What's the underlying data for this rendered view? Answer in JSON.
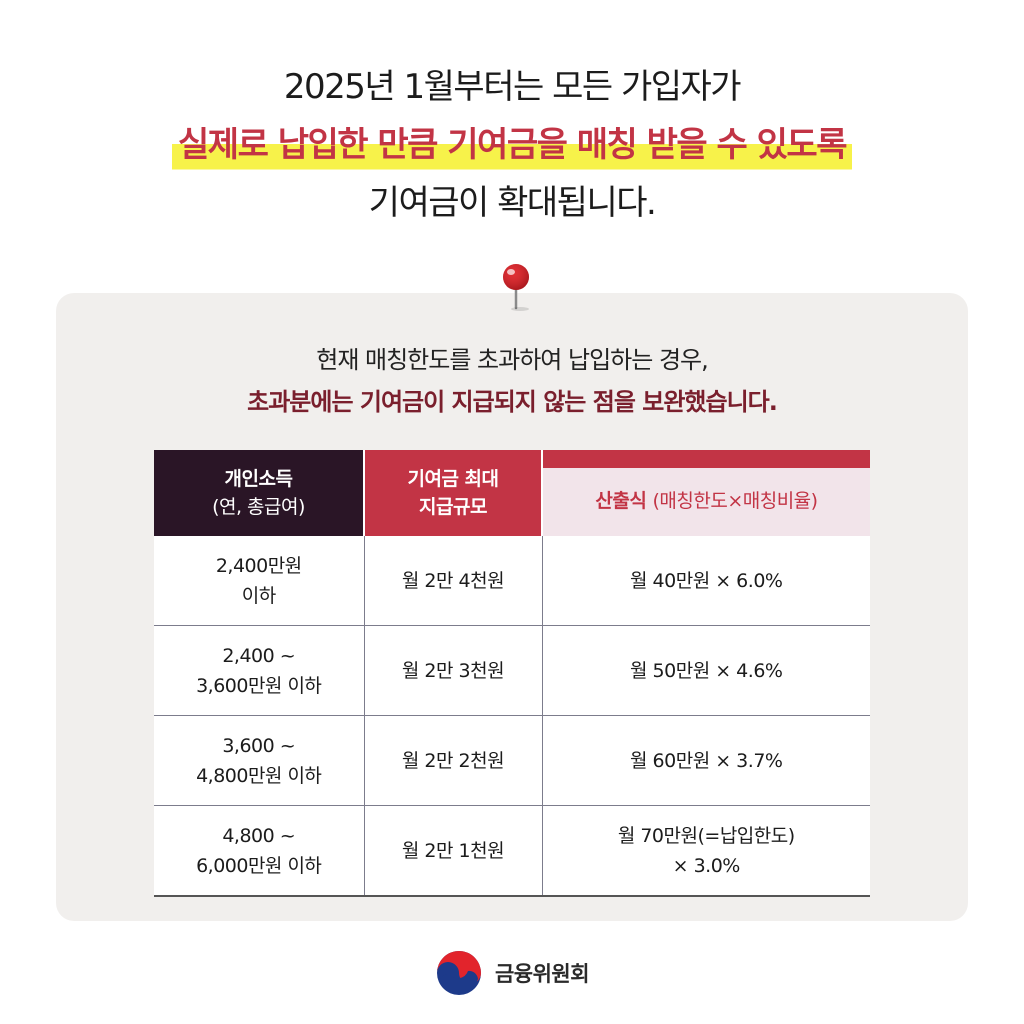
{
  "headline": {
    "line1": "2025년 1월부터는 모든 가입자가",
    "line2_highlight": "실제로 납입한 만큼 기여금을 매칭 받을 수 있도록",
    "line3": "기여금이 확대됩니다."
  },
  "intro": {
    "line1": "현재 매칭한도를 초과하여 납입하는 경우,",
    "line2": "초과분에는 기여금이 지급되지 않는 점을 보완했습니다."
  },
  "table": {
    "headers": {
      "income_title": "개인소득",
      "income_sub": "(연, 총급여)",
      "max_title": "기여금 최대",
      "max_sub": "지급규모",
      "formula_title": "산출식",
      "formula_note": "(매칭한도×매칭비율)"
    },
    "rows": [
      {
        "income_line1": "2,400만원",
        "income_line2": "이하",
        "max": "월 2만 4천원",
        "formula_line1": "월 40만원 × 6.0%",
        "formula_line2": ""
      },
      {
        "income_line1": "2,400 ~",
        "income_line2": "3,600만원 이하",
        "max": "월 2만 3천원",
        "formula_line1": "월 50만원 × 4.6%",
        "formula_line2": ""
      },
      {
        "income_line1": "3,600 ~",
        "income_line2": "4,800만원 이하",
        "max": "월 2만 2천원",
        "formula_line1": "월 60만원 × 3.7%",
        "formula_line2": ""
      },
      {
        "income_line1": "4,800 ~",
        "income_line2": "6,000만원 이하",
        "max": "월 2만 1천원",
        "formula_line1": "월 70만원(=납입한도)",
        "formula_line2": "× 3.0%"
      }
    ]
  },
  "footer": {
    "org_name": "금융위원회",
    "logo_icon": "taegeuk-logo-icon"
  },
  "colors": {
    "accent_red": "#c23445",
    "dark_plum": "#2a1526",
    "highlight_yellow": "#f7f24a",
    "panel_bg": "#f1efed",
    "subheading": "#7a1f2d"
  }
}
